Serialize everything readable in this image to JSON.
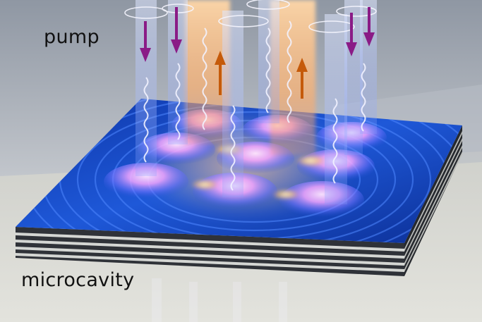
{
  "labels": {
    "pump": "pump",
    "microcavity": "microcavity"
  },
  "colors": {
    "background_top": "#9aa1ab",
    "background_bottom": "#d7d8d8",
    "floor": "#dcdcd6",
    "cavity_surface": "#1a4fd0",
    "cavity_surface_dark": "#0b2a8c",
    "cavity_layer_dark": "#3a3d44",
    "cavity_layer_light": "#c9cbc9",
    "beam_glow": "#ffb46a",
    "beam_blue": "#9fb8ff",
    "condensate_pink": "#f6a2ff",
    "condensate_yellow": "#fff1a8",
    "pump_arrow": "#8a1b86",
    "emission_arrow": "#c55a0a",
    "spiral": "#f4f4ff"
  },
  "icons": {
    "pump_arrow": "down-arrow-icon",
    "emission_arrow": "up-arrow-icon"
  }
}
